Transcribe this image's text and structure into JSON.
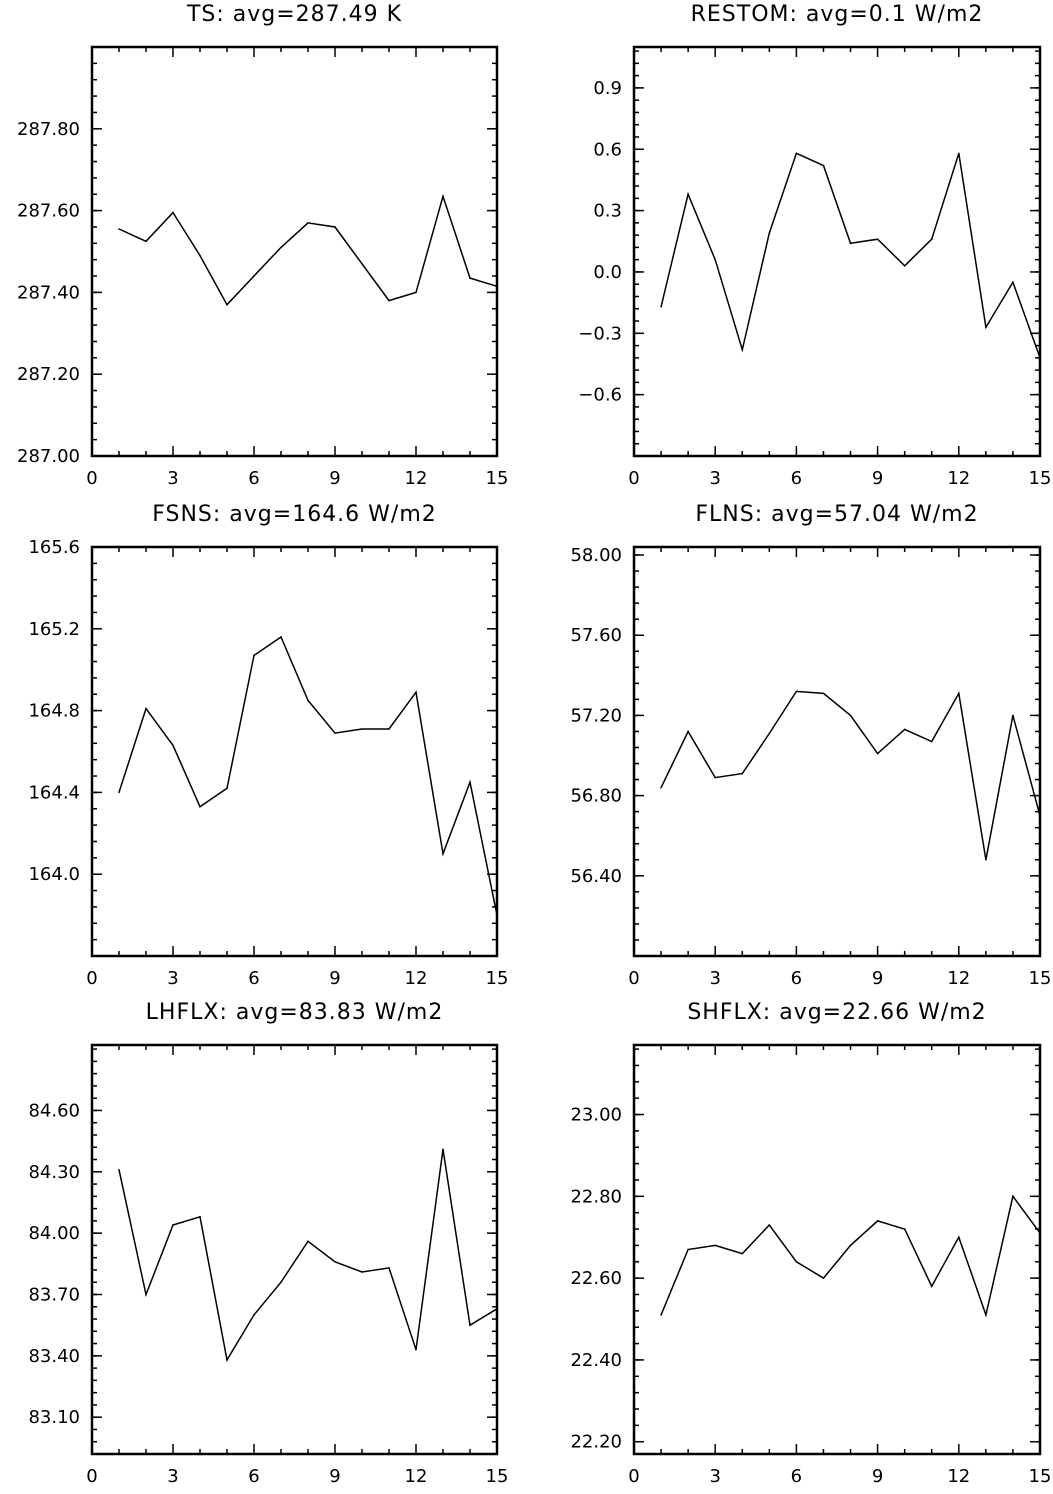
{
  "chart_data": [
    {
      "type": "line",
      "title": "TS: avg=287.49 K",
      "x": [
        1,
        2,
        3,
        4,
        5,
        6,
        7,
        8,
        9,
        10,
        11,
        12,
        13,
        14,
        15
      ],
      "values": [
        287.555,
        287.525,
        287.595,
        287.49,
        287.37,
        287.44,
        287.51,
        287.57,
        287.56,
        287.47,
        287.38,
        287.4,
        287.635,
        287.435,
        287.415
      ],
      "xlim": [
        0,
        15
      ],
      "ylim": [
        287.0,
        288.0
      ],
      "xticks": [
        "0",
        "3",
        "6",
        "9",
        "12",
        "15"
      ],
      "xtick_values": [
        0,
        3,
        6,
        9,
        12,
        15
      ],
      "yticks": [
        "287.00",
        "287.20",
        "287.40",
        "287.60",
        "287.80"
      ],
      "ytick_values": [
        287.0,
        287.2,
        287.4,
        287.6,
        287.8
      ],
      "minor_y_step": 0.04
    },
    {
      "type": "line",
      "title": "RESTOM: avg=0.1 W/m2",
      "x": [
        1,
        2,
        3,
        4,
        5,
        6,
        7,
        8,
        9,
        10,
        11,
        12,
        13,
        14,
        15
      ],
      "values": [
        -0.17,
        0.38,
        0.06,
        -0.38,
        0.19,
        0.58,
        0.52,
        0.14,
        0.16,
        0.03,
        0.16,
        0.58,
        -0.27,
        -0.05,
        -0.42
      ],
      "xlim": [
        0,
        15
      ],
      "ylim": [
        -0.9,
        1.1
      ],
      "xticks": [
        "0",
        "3",
        "6",
        "9",
        "12",
        "15"
      ],
      "xtick_values": [
        0,
        3,
        6,
        9,
        12,
        15
      ],
      "yticks": [
        "−0.6",
        "−0.3",
        "0.0",
        "0.3",
        "0.6",
        "0.9"
      ],
      "ytick_values": [
        -0.6,
        -0.3,
        0.0,
        0.3,
        0.6,
        0.9
      ],
      "minor_y_step": 0.06
    },
    {
      "type": "line",
      "title": "FSNS: avg=164.6 W/m2",
      "x": [
        1,
        2,
        3,
        4,
        5,
        6,
        7,
        8,
        9,
        10,
        11,
        12,
        13,
        14,
        15
      ],
      "values": [
        164.4,
        164.81,
        164.63,
        164.33,
        164.42,
        165.07,
        165.16,
        164.85,
        164.69,
        164.71,
        164.71,
        164.89,
        164.1,
        164.45,
        163.8
      ],
      "xlim": [
        0,
        15
      ],
      "ylim": [
        163.6,
        165.6
      ],
      "xticks": [
        "0",
        "3",
        "6",
        "9",
        "12",
        "15"
      ],
      "xtick_values": [
        0,
        3,
        6,
        9,
        12,
        15
      ],
      "yticks": [
        "164.0",
        "164.4",
        "164.8",
        "165.2",
        "165.6"
      ],
      "ytick_values": [
        164.0,
        164.4,
        164.8,
        165.2,
        165.6
      ],
      "minor_y_step": 0.08
    },
    {
      "type": "line",
      "title": "FLNS: avg=57.04 W/m2",
      "x": [
        1,
        2,
        3,
        4,
        5,
        6,
        7,
        8,
        9,
        10,
        11,
        12,
        13,
        14,
        15
      ],
      "values": [
        56.84,
        57.12,
        56.89,
        56.91,
        57.11,
        57.32,
        57.31,
        57.2,
        57.01,
        57.13,
        57.07,
        57.31,
        56.48,
        57.2,
        56.7
      ],
      "xlim": [
        0,
        15
      ],
      "ylim": [
        56.0,
        58.04
      ],
      "xticks": [
        "0",
        "3",
        "6",
        "9",
        "12",
        "15"
      ],
      "xtick_values": [
        0,
        3,
        6,
        9,
        12,
        15
      ],
      "yticks": [
        "56.40",
        "56.80",
        "57.20",
        "57.60",
        "58.00"
      ],
      "ytick_values": [
        56.4,
        56.8,
        57.2,
        57.6,
        58.0
      ],
      "minor_y_step": 0.08
    },
    {
      "type": "line",
      "title": "LHFLX: avg=83.83 W/m2",
      "x": [
        1,
        2,
        3,
        4,
        5,
        6,
        7,
        8,
        9,
        10,
        11,
        12,
        13,
        14,
        15
      ],
      "values": [
        84.31,
        83.7,
        84.04,
        84.08,
        83.38,
        83.6,
        83.76,
        83.96,
        83.86,
        83.81,
        83.83,
        83.43,
        84.41,
        83.55,
        83.63
      ],
      "xlim": [
        0,
        15
      ],
      "ylim": [
        82.92,
        84.92
      ],
      "xticks": [
        "0",
        "3",
        "6",
        "9",
        "12",
        "15"
      ],
      "xtick_values": [
        0,
        3,
        6,
        9,
        12,
        15
      ],
      "yticks": [
        "83.10",
        "83.40",
        "83.70",
        "84.00",
        "84.30",
        "84.60"
      ],
      "ytick_values": [
        83.1,
        83.4,
        83.7,
        84.0,
        84.3,
        84.6
      ],
      "minor_y_step": 0.06
    },
    {
      "type": "line",
      "title": "SHFLX: avg=22.66 W/m2",
      "x": [
        1,
        2,
        3,
        4,
        5,
        6,
        7,
        8,
        9,
        10,
        11,
        12,
        13,
        14,
        15
      ],
      "values": [
        22.51,
        22.67,
        22.68,
        22.66,
        22.73,
        22.64,
        22.6,
        22.68,
        22.74,
        22.72,
        22.58,
        22.7,
        22.51,
        22.8,
        22.71
      ],
      "xlim": [
        0,
        15
      ],
      "ylim": [
        22.17,
        23.17
      ],
      "xticks": [
        "0",
        "3",
        "6",
        "9",
        "12",
        "15"
      ],
      "xtick_values": [
        0,
        3,
        6,
        9,
        12,
        15
      ],
      "yticks": [
        "22.20",
        "22.40",
        "22.60",
        "22.80",
        "23.00"
      ],
      "ytick_values": [
        22.2,
        22.4,
        22.6,
        22.8,
        23.0
      ],
      "minor_y_step": 0.04
    }
  ]
}
